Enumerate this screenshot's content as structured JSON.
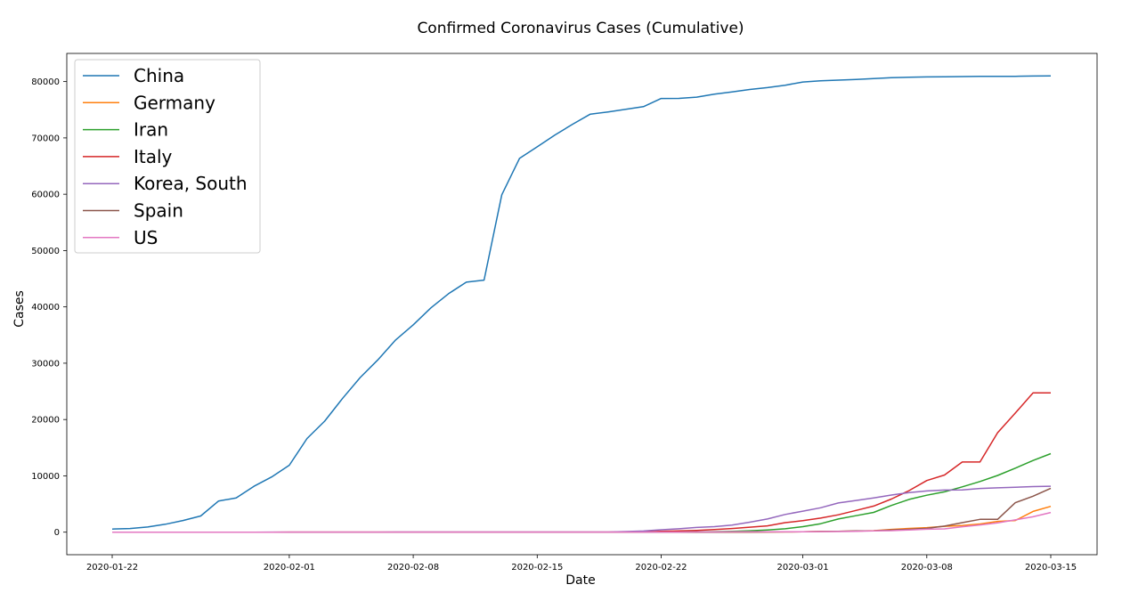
{
  "chart_data": {
    "type": "line",
    "title": "Confirmed Coronavirus Cases (Cumulative)",
    "xlabel": "Date",
    "ylabel": "Cases",
    "x_start": "2020-01-22",
    "x_end": "2020-03-15",
    "xtick_labels": [
      "2020-01-22",
      "2020-02-01",
      "2020-02-08",
      "2020-02-15",
      "2020-02-22",
      "2020-03-01",
      "2020-03-08",
      "2020-03-15"
    ],
    "xtick_day_index": [
      0,
      10,
      17,
      24,
      31,
      39,
      46,
      53
    ],
    "ylim": [
      -4000,
      85000
    ],
    "yticks": [
      0,
      10000,
      20000,
      30000,
      40000,
      50000,
      60000,
      70000,
      80000
    ],
    "legend_position": "upper-left",
    "series": [
      {
        "name": "China",
        "color": "#1f77b4",
        "values": [
          548,
          643,
          920,
          1406,
          2075,
          2877,
          5509,
          6087,
          8141,
          9802,
          11891,
          16630,
          19716,
          23707,
          27440,
          30587,
          34110,
          36814,
          39829,
          42354,
          44386,
          44759,
          59895,
          66358,
          68413,
          70513,
          72434,
          74211,
          74619,
          75077,
          75550,
          77001,
          77022,
          77241,
          77754,
          78166,
          78600,
          78928,
          79356,
          79932,
          80136,
          80261,
          80386,
          80537,
          80690,
          80770,
          80823,
          80860,
          80887,
          80921,
          80932,
          80945,
          80977,
          81003
        ]
      },
      {
        "name": "Germany",
        "color": "#ff7f0e",
        "values": [
          0,
          0,
          0,
          0,
          0,
          1,
          4,
          4,
          4,
          5,
          8,
          10,
          12,
          12,
          12,
          12,
          13,
          13,
          14,
          14,
          16,
          16,
          16,
          16,
          16,
          16,
          16,
          16,
          16,
          16,
          16,
          16,
          16,
          16,
          16,
          16,
          18,
          26,
          48,
          79,
          130,
          159,
          196,
          262,
          482,
          670,
          799,
          1040,
          1176,
          1457,
          1908,
          2078,
          3675,
          4585
        ]
      },
      {
        "name": "Iran",
        "color": "#2ca02c",
        "values": [
          0,
          0,
          0,
          0,
          0,
          0,
          0,
          0,
          0,
          0,
          0,
          0,
          0,
          0,
          0,
          0,
          0,
          0,
          0,
          0,
          0,
          0,
          0,
          0,
          0,
          0,
          0,
          0,
          2,
          5,
          18,
          28,
          43,
          61,
          95,
          139,
          245,
          388,
          593,
          978,
          1501,
          2336,
          2922,
          3513,
          4747,
          5823,
          6566,
          7161,
          8042,
          9000,
          10075,
          11364,
          12729,
          13938
        ]
      },
      {
        "name": "Italy",
        "color": "#d62728",
        "values": [
          0,
          0,
          0,
          0,
          0,
          0,
          0,
          0,
          0,
          2,
          2,
          2,
          2,
          2,
          2,
          2,
          3,
          3,
          3,
          3,
          3,
          3,
          3,
          3,
          3,
          3,
          3,
          3,
          3,
          20,
          62,
          155,
          229,
          322,
          453,
          655,
          888,
          1128,
          1694,
          2036,
          2502,
          3089,
          3858,
          4636,
          5883,
          7375,
          9172,
          10149,
          12462,
          12462,
          17660,
          21157,
          24747,
          24747
        ]
      },
      {
        "name": "Korea, South",
        "color": "#9467bd",
        "values": [
          1,
          1,
          2,
          2,
          3,
          4,
          4,
          4,
          4,
          11,
          12,
          15,
          15,
          16,
          19,
          23,
          24,
          24,
          25,
          27,
          28,
          28,
          28,
          28,
          28,
          29,
          30,
          31,
          31,
          104,
          204,
          433,
          602,
          833,
          977,
          1261,
          1766,
          2337,
          3150,
          3736,
          4335,
          5186,
          5621,
          6088,
          6593,
          7041,
          7314,
          7478,
          7513,
          7755,
          7869,
          7979,
          8086,
          8162
        ]
      },
      {
        "name": "Spain",
        "color": "#8c564b",
        "values": [
          0,
          0,
          0,
          0,
          0,
          0,
          0,
          0,
          0,
          0,
          1,
          1,
          1,
          1,
          1,
          1,
          1,
          1,
          1,
          2,
          2,
          2,
          2,
          2,
          2,
          2,
          2,
          2,
          2,
          2,
          2,
          2,
          2,
          2,
          6,
          13,
          15,
          32,
          45,
          84,
          120,
          165,
          222,
          259,
          400,
          500,
          673,
          1073,
          1695,
          2277,
          2277,
          5232,
          6391,
          7798
        ]
      },
      {
        "name": "US",
        "color": "#e377c2",
        "values": [
          1,
          1,
          2,
          2,
          5,
          5,
          5,
          5,
          5,
          7,
          8,
          8,
          11,
          11,
          11,
          11,
          11,
          11,
          11,
          11,
          12,
          12,
          13,
          13,
          13,
          13,
          13,
          13,
          13,
          13,
          15,
          15,
          15,
          51,
          51,
          57,
          58,
          60,
          68,
          74,
          98,
          118,
          149,
          217,
          262,
          402,
          518,
          583,
          959,
          1281,
          1663,
          2179,
          2727,
          3499
        ]
      }
    ]
  }
}
